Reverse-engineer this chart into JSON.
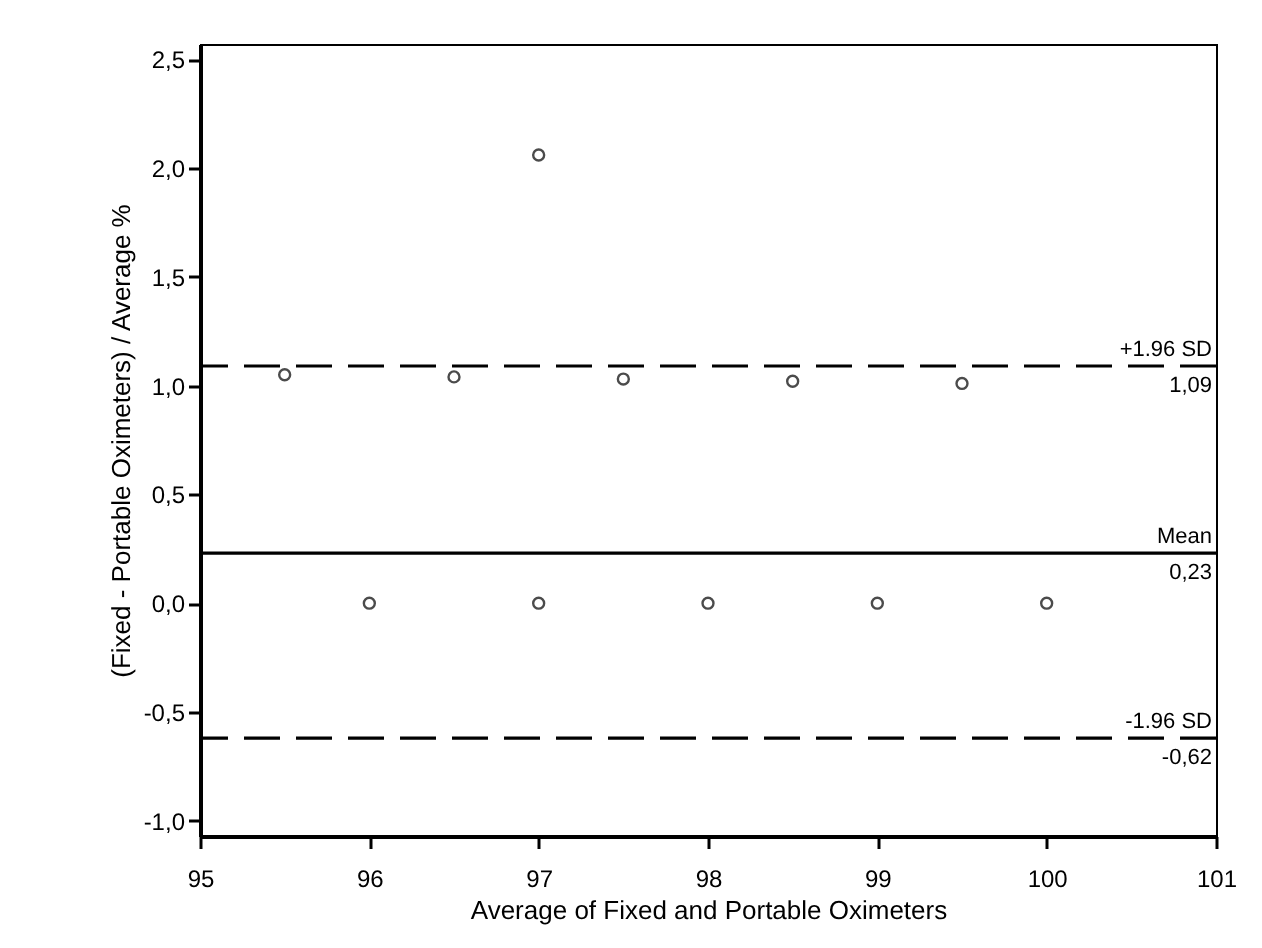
{
  "chart_data": {
    "type": "scatter",
    "xlabel": "Average of Fixed and Portable Oximeters",
    "ylabel": "(Fixed - Portable Oximeters) / Average %",
    "x": [
      95.5,
      96,
      96.5,
      97,
      97,
      97.5,
      98,
      98.5,
      99,
      99.5,
      100
    ],
    "values": [
      1.05,
      0,
      1.04,
      2.06,
      0,
      1.03,
      0,
      1.02,
      0,
      1.01,
      0
    ],
    "color": "#000000",
    "marker": "circle",
    "grid": false,
    "xlim": [
      95,
      101
    ],
    "xticks": [
      95,
      96,
      97,
      98,
      99,
      100,
      101
    ],
    "ylim": [
      -1.07,
      2.57
    ],
    "yticks": [
      {
        "value": -1.0,
        "label": "-1,0"
      },
      {
        "value": -0.5,
        "label": "-0,5"
      },
      {
        "value": 0,
        "label": "0,0"
      },
      {
        "value": 0.5,
        "label": "0,5"
      },
      {
        "value": 1.0,
        "label": "1,0"
      },
      {
        "value": 1.5,
        "label": "1,5"
      },
      {
        "value": 2.0,
        "label": "2,0"
      },
      {
        "value": 2.5,
        "label": "2,5"
      }
    ],
    "ref_lines": [
      {
        "axis": "y",
        "value": 1.09,
        "label": "+1.96 SD",
        "line_style": "dashed",
        "color": "#000000"
      },
      {
        "axis": "y",
        "value": 0.23,
        "label": "Mean",
        "line_style": "solid",
        "color": "#000000"
      },
      {
        "axis": "y",
        "value": -0.62,
        "label": "-1.96 SD",
        "line_style": "dashed",
        "color": "#000000"
      }
    ],
    "annotations": [
      {
        "text": "1,09",
        "y": 1.09
      },
      {
        "text": "0,23",
        "y": 0.23
      },
      {
        "text": "-0,62",
        "y": -0.62
      }
    ]
  }
}
